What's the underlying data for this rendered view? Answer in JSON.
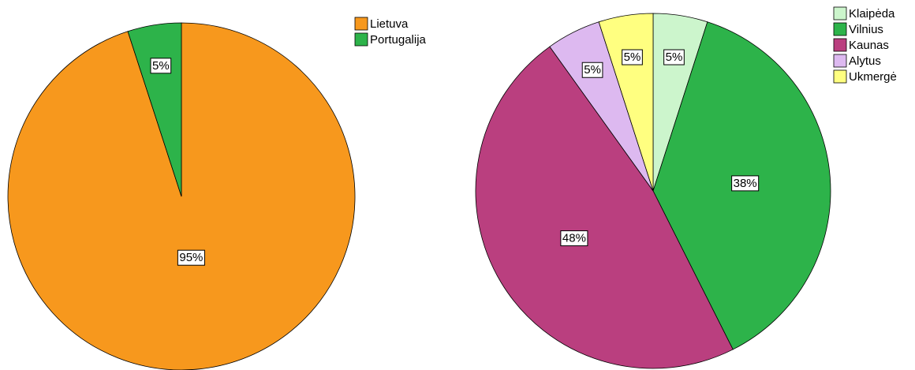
{
  "chart_data": [
    {
      "type": "pie",
      "categories": [
        "Lietuva",
        "Portugalija"
      ],
      "values": [
        95,
        5
      ],
      "value_labels": [
        "95%",
        "5%"
      ],
      "colors": [
        "#f7981d",
        "#2db34a"
      ]
    },
    {
      "type": "pie",
      "categories": [
        "Klaipėda",
        "Vilnius",
        "Kaunas",
        "Alytus",
        "Ukmergė"
      ],
      "values": [
        5,
        38,
        48,
        5,
        5
      ],
      "value_labels": [
        "5%",
        "38%",
        "48%",
        "5%",
        "5%"
      ],
      "colors": [
        "#ccf5cc",
        "#2db34a",
        "#ba3f7f",
        "#ddb9f0",
        "#ffff80"
      ]
    }
  ]
}
